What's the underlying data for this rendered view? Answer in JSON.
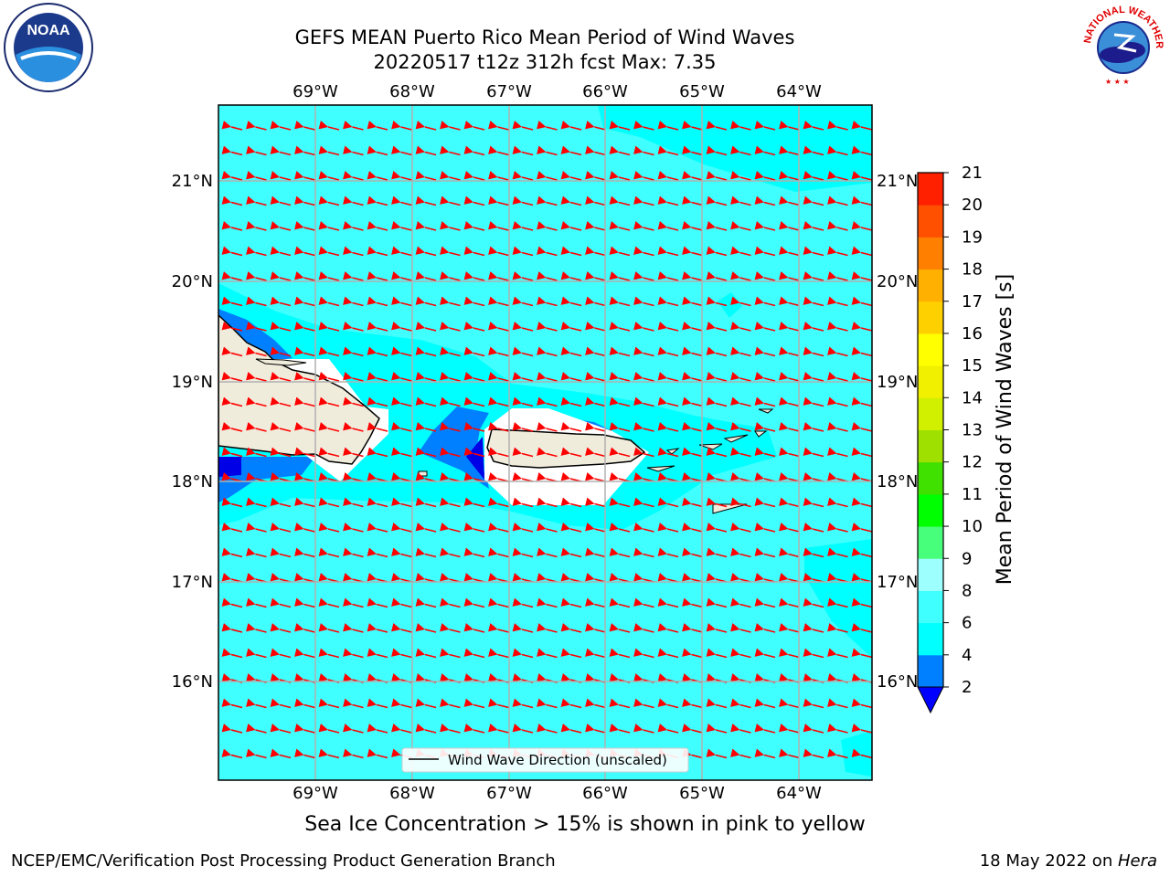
{
  "title": {
    "line1": "GEFS MEAN Puerto Rico Mean Period of Wind Waves",
    "line2": "20220517 t12z 312h fcst   Max: 7.35"
  },
  "logos": {
    "left": {
      "icon": "noaa-logo",
      "text": "NOAA"
    },
    "right": {
      "icon": "nws-logo",
      "text": "NATIONAL WEATHER SERVICE"
    }
  },
  "map": {
    "lon_labels": [
      "69°W",
      "68°W",
      "67°W",
      "66°W",
      "65°W",
      "64°W"
    ],
    "lat_labels": [
      "21°N",
      "20°N",
      "19°N",
      "18°N",
      "17°N",
      "16°N"
    ],
    "legend_label": "Wind Wave Direction (unscaled)",
    "ocean_colors": {
      "dark_blue": "#0000e6",
      "blue": "#0080ff",
      "aqua": "#00ffff",
      "light_aqua": "#40fff0",
      "land": "#efecdc",
      "arrow": "#ff0000"
    }
  },
  "colorbar": {
    "label": "Mean Period of Wind Waves [s]",
    "ticks": [
      "2",
      "4",
      "6",
      "8",
      "9",
      "10",
      "11",
      "12",
      "13",
      "14",
      "15",
      "16",
      "17",
      "18",
      "19",
      "20",
      "21"
    ],
    "colors": [
      "#0080ff",
      "#00ffff",
      "#40ffff",
      "#9effff",
      "#48ff7c",
      "#00ff00",
      "#40e000",
      "#a0e000",
      "#d0f000",
      "#f0f000",
      "#ffff00",
      "#ffd000",
      "#ffb000",
      "#ff8000",
      "#ff5000",
      "#ff2000"
    ],
    "under_color": "#0000ff"
  },
  "footer": {
    "ice_note": "Sea Ice Concentration > 15% is shown in pink to yellow",
    "left": "NCEP/EMC/Verification Post Processing Product Generation Branch",
    "right_date": "18 May 2022 on ",
    "right_machine": "Hera"
  }
}
